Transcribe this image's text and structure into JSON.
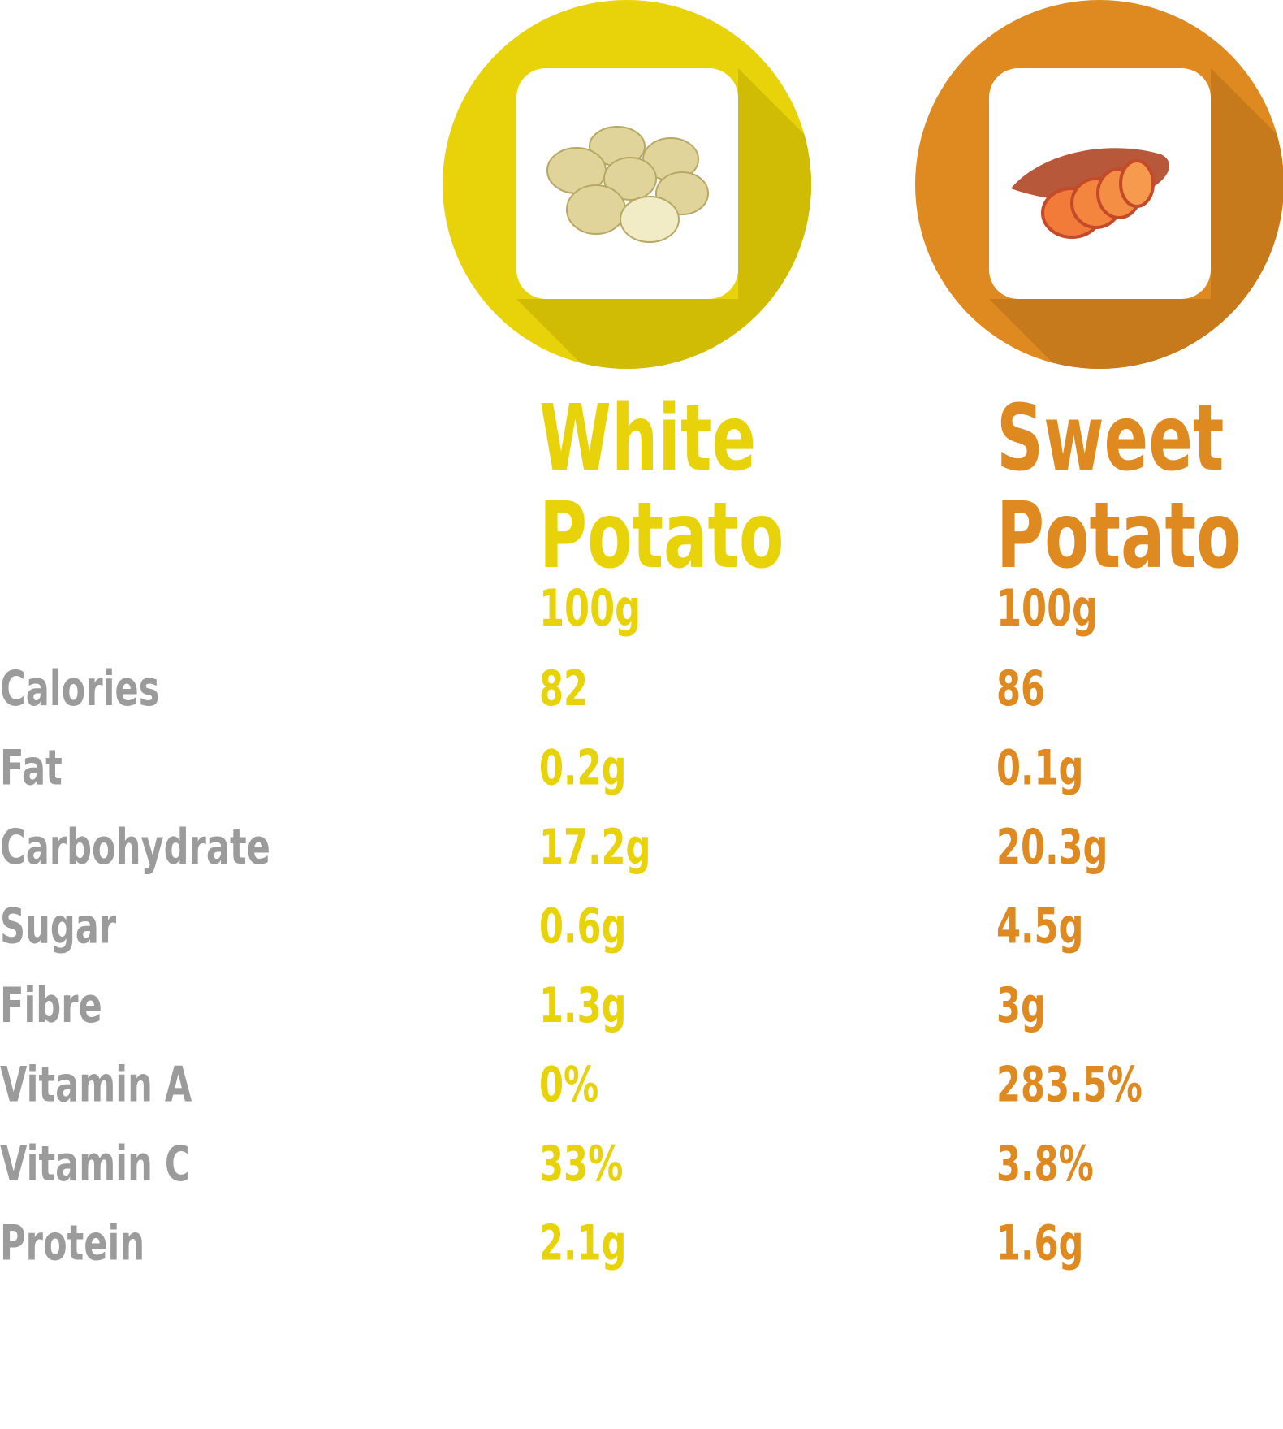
{
  "columns": [
    {
      "title": [
        "White",
        "Potato"
      ],
      "serving": "100g",
      "color": "#e8d20a",
      "values": [
        "82",
        "0.2g",
        "17.2g",
        "0.6g",
        "1.3g",
        "0%",
        "33%",
        "2.1g"
      ]
    },
    {
      "title": [
        "Sweet",
        "Potato"
      ],
      "serving": "100g",
      "color": "#de8a20",
      "values": [
        "86",
        "0.1g",
        "20.3g",
        "4.5g",
        "3g",
        "283.5%",
        "3.8%",
        "1.6g"
      ]
    }
  ],
  "nutrients": [
    "Calories",
    "Fat",
    "Carbohydrate",
    "Sugar",
    "Fibre",
    "Vitamin A",
    "Vitamin C",
    "Protein"
  ]
}
